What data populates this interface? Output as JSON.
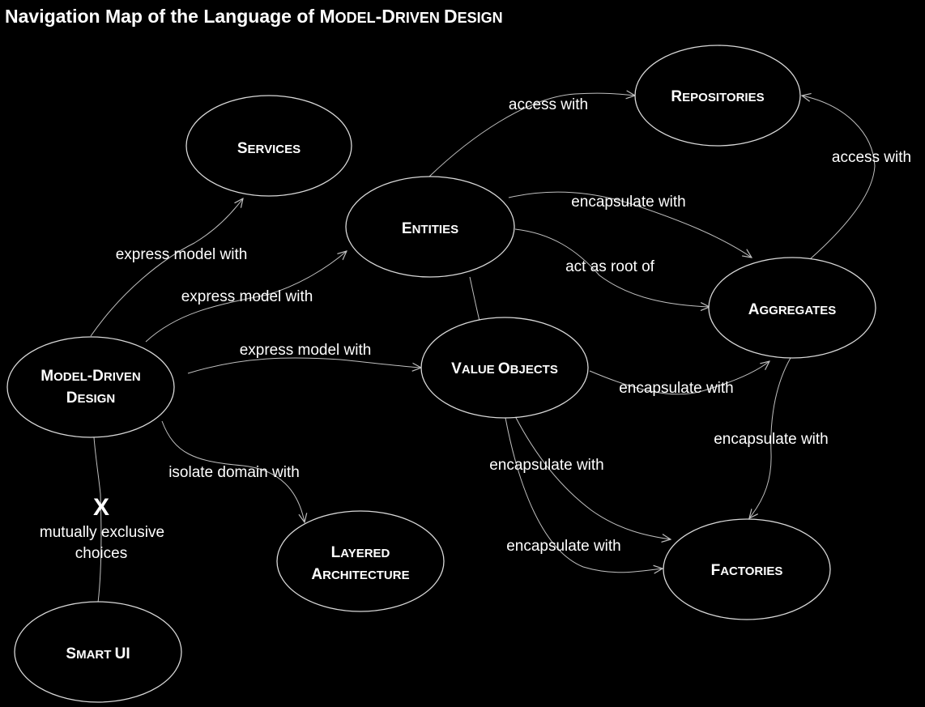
{
  "diagram": {
    "title": {
      "prefix": "Navigation Map of the Language of ",
      "parts": [
        {
          "caps": "M",
          "small": "ODEL"
        },
        {
          "caps": "-D",
          "small": "RIVEN "
        },
        {
          "caps": "D",
          "small": "ESIGN"
        }
      ]
    },
    "nodes": {
      "services": {
        "lines": [
          [
            {
              "caps": "S",
              "small": "ERVICES"
            }
          ]
        ]
      },
      "repositories": {
        "lines": [
          [
            {
              "caps": "R",
              "small": "EPOSITORIES"
            }
          ]
        ]
      },
      "entities": {
        "lines": [
          [
            {
              "caps": "E",
              "small": "NTITIES"
            }
          ]
        ]
      },
      "aggregates": {
        "lines": [
          [
            {
              "caps": "A",
              "small": "GGREGATES"
            }
          ]
        ]
      },
      "value_objects": {
        "lines": [
          [
            {
              "caps": "V",
              "small": "ALUE "
            },
            {
              "caps": "O",
              "small": "BJECTS"
            }
          ]
        ]
      },
      "model_driven_design": {
        "lines": [
          [
            {
              "caps": "M",
              "small": "ODEL"
            },
            {
              "caps": "-D",
              "small": "RIVEN"
            }
          ],
          [
            {
              "caps": "D",
              "small": "ESIGN"
            }
          ]
        ]
      },
      "layered_architecture": {
        "lines": [
          [
            {
              "caps": "L",
              "small": "AYERED"
            }
          ],
          [
            {
              "caps": "A",
              "small": "RCHITECTURE"
            }
          ]
        ]
      },
      "factories": {
        "lines": [
          [
            {
              "caps": "F",
              "small": "ACTORIES"
            }
          ]
        ]
      },
      "smart_ui": {
        "lines": [
          [
            {
              "caps": "S",
              "small": "MART "
            },
            {
              "caps": "UI",
              "small": ""
            }
          ]
        ]
      }
    },
    "edge_labels": {
      "entities_access_repositories": "access with",
      "aggregates_access_repositories": "access with",
      "entities_encapsulate_aggregates": "encapsulate with",
      "entities_root_aggregates": "act as root of",
      "mdd_express_services": "express model with",
      "mdd_express_entities": "express model with",
      "mdd_express_value_objects": "express model with",
      "value_objects_encapsulate_aggregates": "encapsulate with",
      "aggregates_encapsulate_factories": "encapsulate with",
      "value_objects_encapsulate_factories_1": "encapsulate with",
      "value_objects_encapsulate_factories_2": "encapsulate with",
      "mdd_isolate_layered": "isolate domain with"
    },
    "exclusive": {
      "mark": "X",
      "lines": [
        "mutually exclusive",
        "choices"
      ]
    }
  }
}
